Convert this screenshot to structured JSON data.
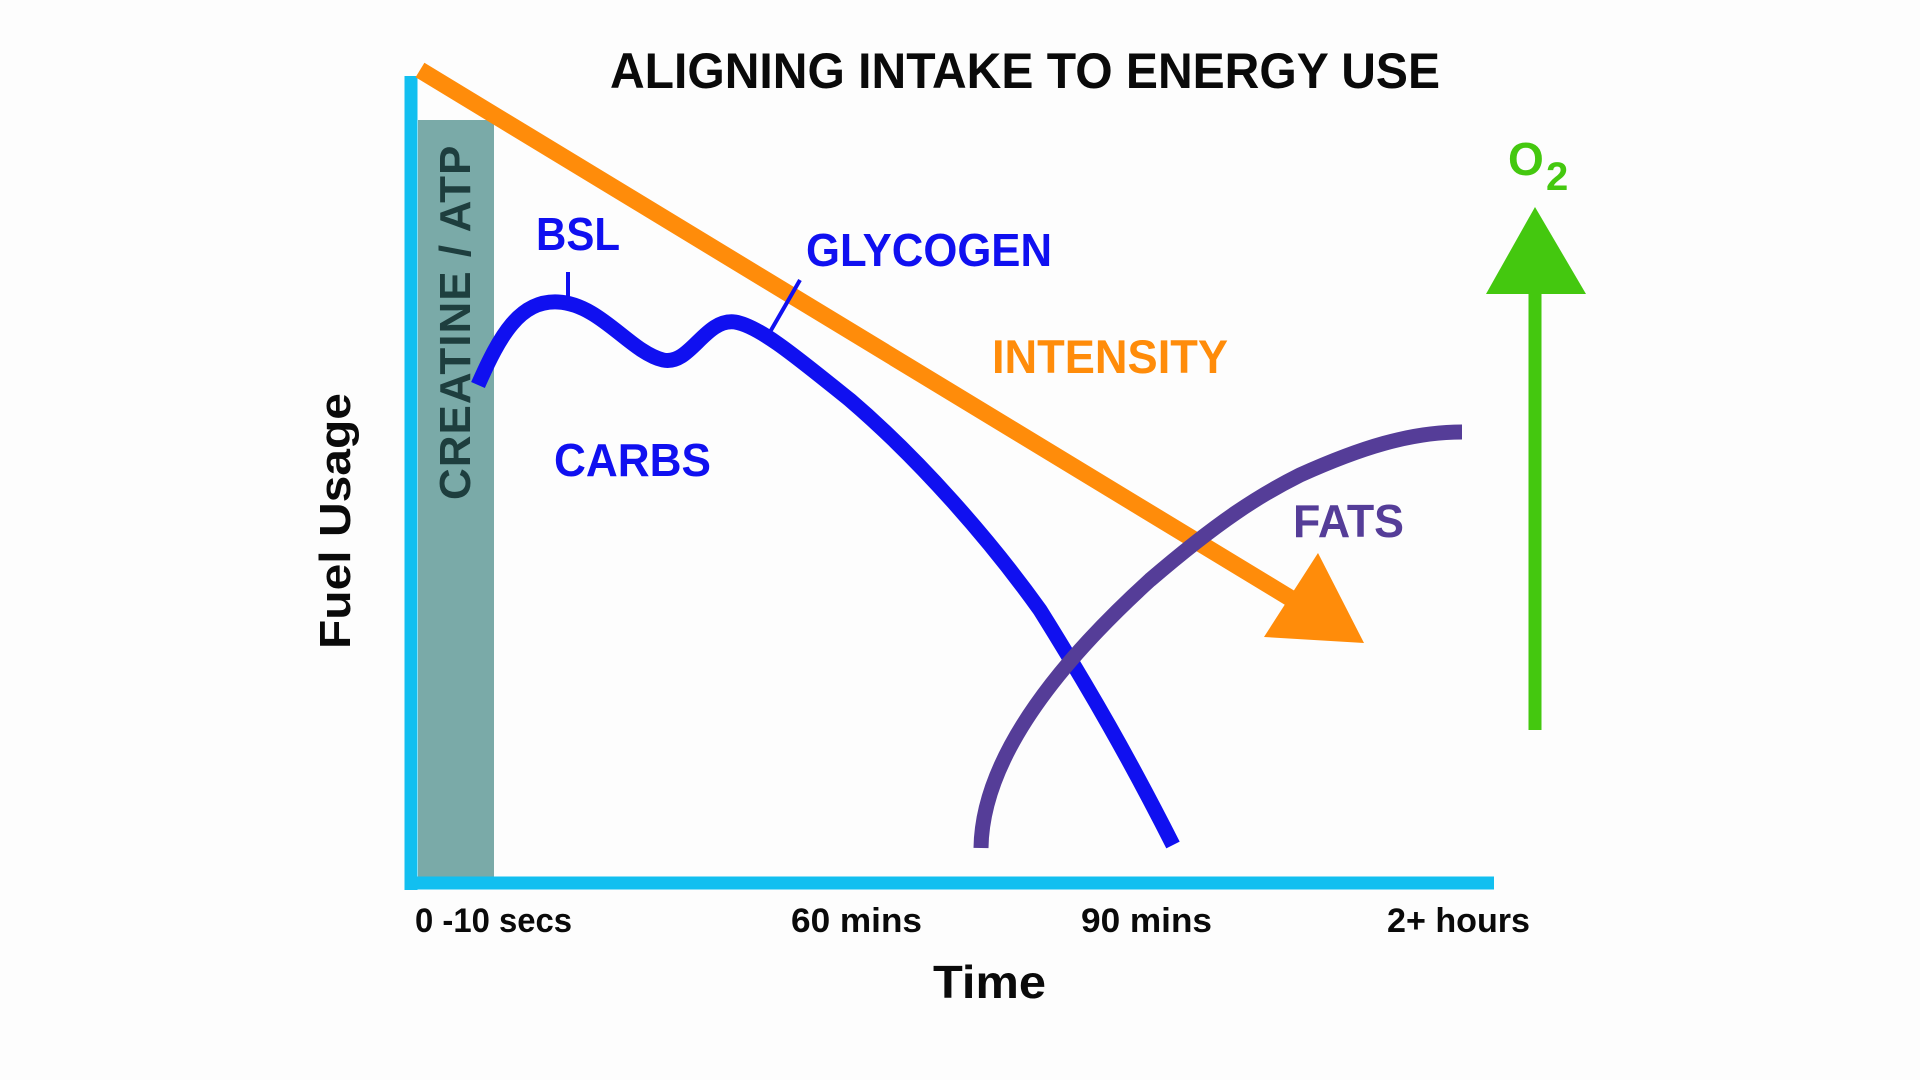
{
  "title": "ALIGNING INTAKE TO ENERGY USE",
  "axes": {
    "y_label": "Fuel Usage",
    "x_label": "Time",
    "x_ticks": [
      "0 -10 secs",
      "60 mins",
      "90 mins",
      "2+ hours"
    ]
  },
  "labels": {
    "creatine": "CREATINE / ATP",
    "bsl": "BSL",
    "glycogen": "GLYCOGEN",
    "carbs": "CARBS",
    "intensity": "INTENSITY",
    "fats": "FATS",
    "oxygen_main": "O",
    "oxygen_sub": "2"
  },
  "colors": {
    "axis": "#12bff0",
    "creatine_band": "#7aaaa8",
    "creatine_text": "#1e3e3e",
    "carbs": "#1010f0",
    "intensity": "#ff8c0a",
    "fats": "#553d98",
    "oxygen": "#44c80f",
    "text": "#0a0a0a"
  }
}
